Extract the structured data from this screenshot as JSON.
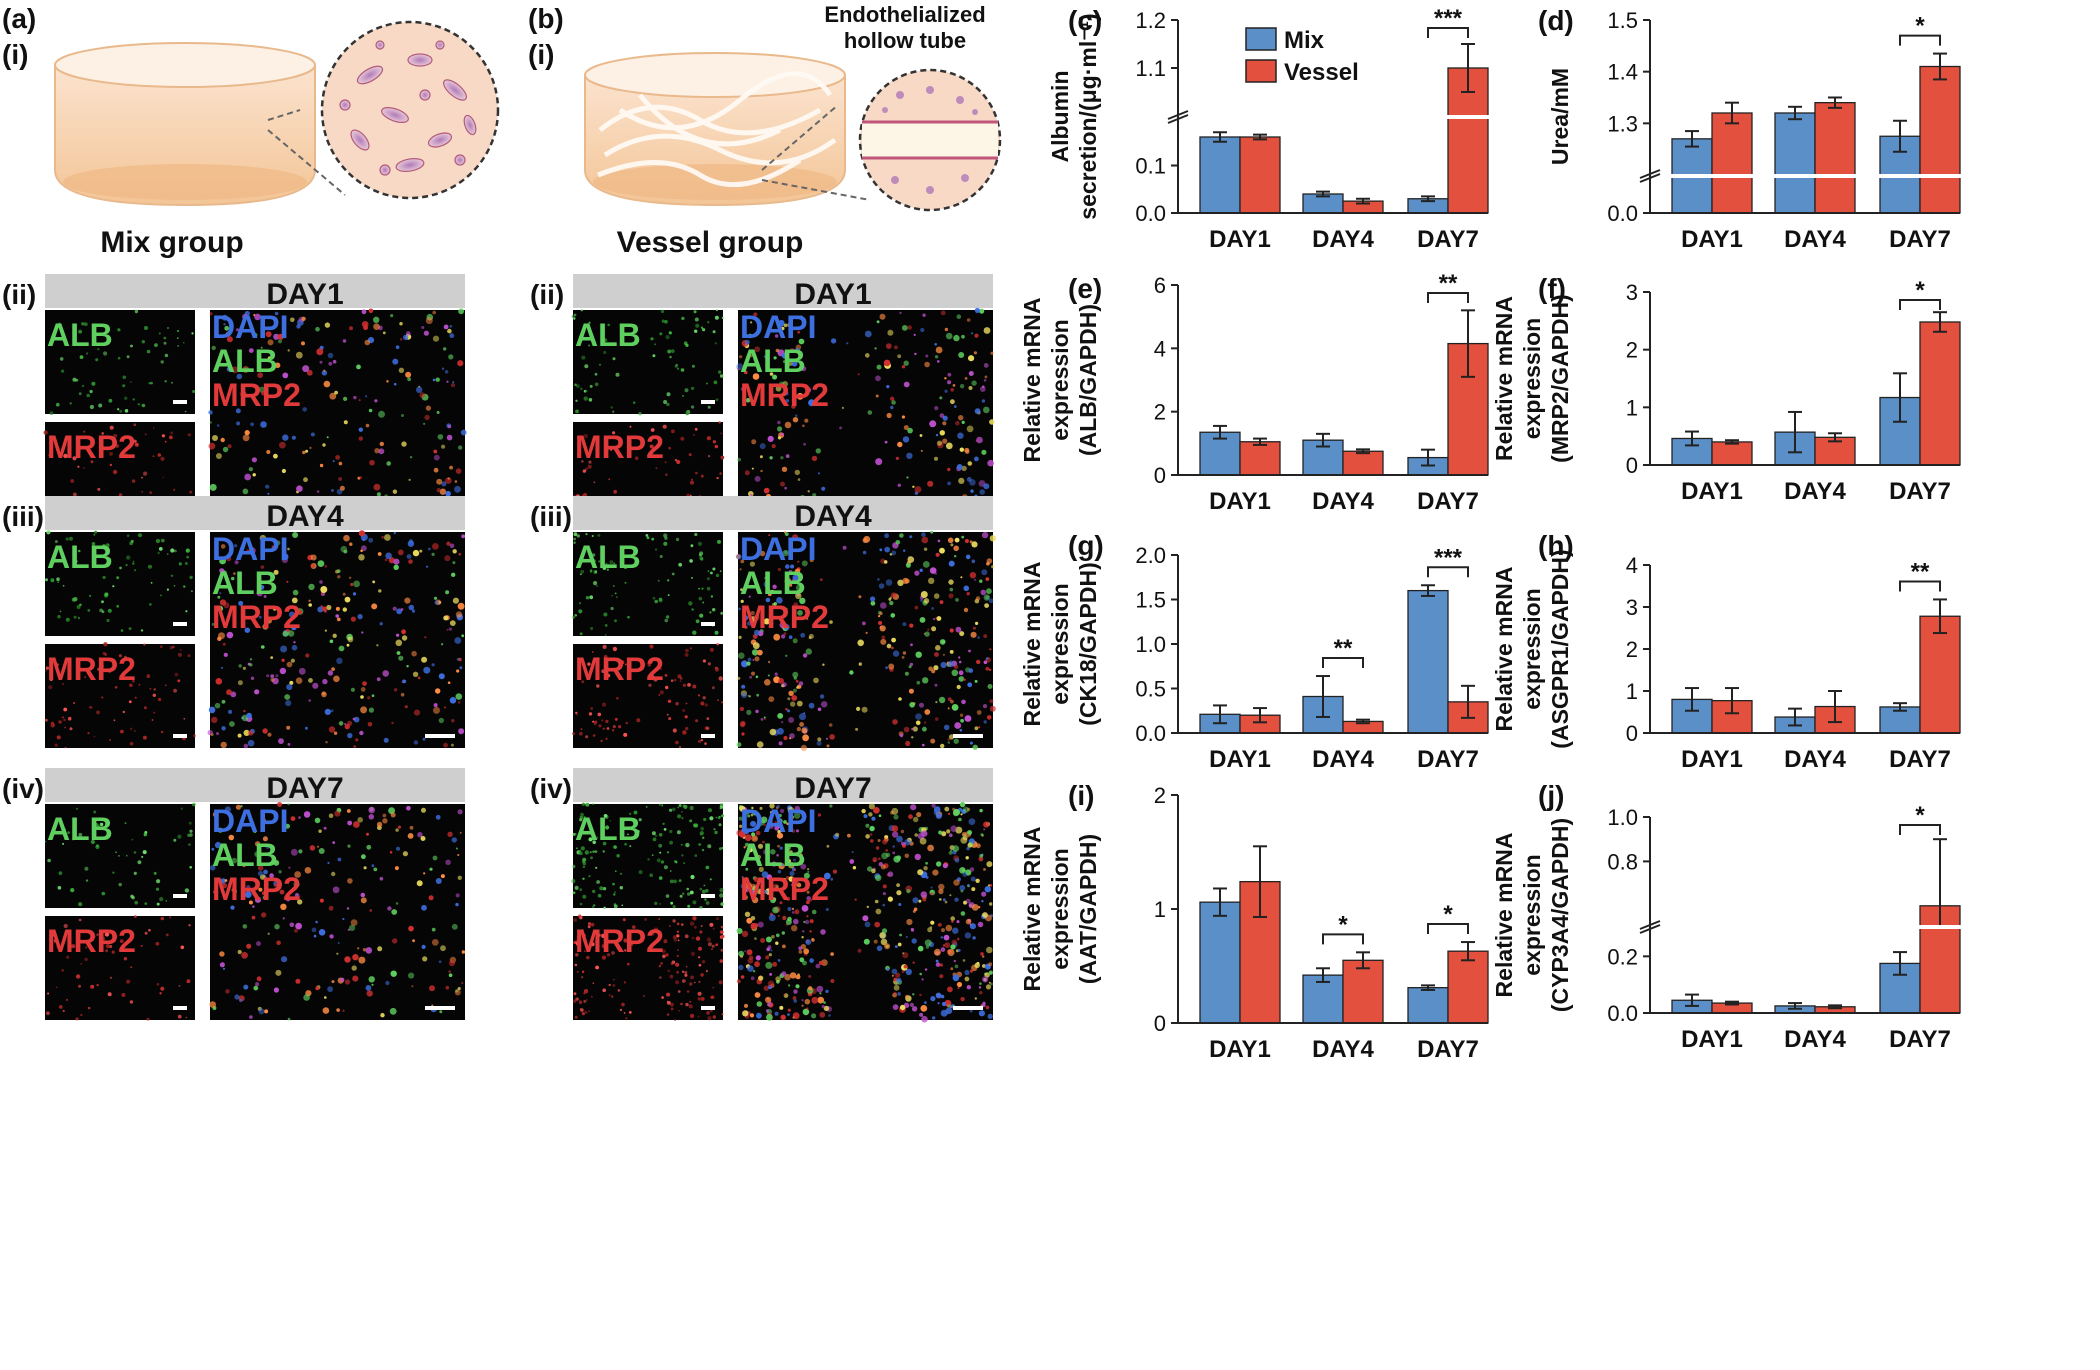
{
  "figure": {
    "colors": {
      "mix": "#5b8fc7",
      "vessel": "#e4503e",
      "green": "#5fd05f",
      "red": "#e23a3a",
      "blue": "#3d6fe0",
      "day_bar": "#cfcfcf"
    },
    "schematic": {
      "a": {
        "label": "(a)",
        "sub": "(i)",
        "group": "Mix group"
      },
      "b": {
        "label": "(b)",
        "sub": "(i)",
        "group": "Vessel group",
        "tube_line1": "Endothelialized",
        "tube_line2": "hollow tube"
      }
    },
    "micro_rows": [
      {
        "sub": "(ii)",
        "day": "DAY1"
      },
      {
        "sub": "(iii)",
        "day": "DAY4"
      },
      {
        "sub": "(iv)",
        "day": "DAY7"
      }
    ],
    "micro_labels": {
      "alb": "ALB",
      "mrp2": "MRP2",
      "dapi": "DAPI"
    },
    "legend": {
      "mix": "Mix",
      "vessel": "Vessel"
    },
    "categories": [
      "DAY1",
      "DAY4",
      "DAY7"
    ]
  },
  "chart_data": [
    {
      "panel": "(c)",
      "type": "bar",
      "ylabel_lines": [
        "Albumin",
        "secretion/(μg·ml⁻¹)"
      ],
      "axis_break": true,
      "yticks": [
        "0.0",
        "0.1",
        "1.1",
        "1.2"
      ],
      "categories": [
        "DAY1",
        "DAY4",
        "DAY7"
      ],
      "series": [
        {
          "name": "Mix",
          "values": [
            0.16,
            0.04,
            0.03
          ],
          "errors": [
            0.01,
            0.005,
            0.005
          ]
        },
        {
          "name": "Vessel",
          "values": [
            0.16,
            0.025,
            1.1
          ],
          "errors": [
            0.005,
            0.005,
            0.05
          ]
        }
      ],
      "significance": [
        {
          "category": "DAY7",
          "label": "***"
        }
      ]
    },
    {
      "panel": "(d)",
      "type": "bar",
      "ylabel_lines": [
        "Urea/mM"
      ],
      "axis_break": true,
      "yticks": [
        "0.0",
        "1.3",
        "1.4",
        "1.5"
      ],
      "categories": [
        "DAY1",
        "DAY4",
        "DAY7"
      ],
      "series": [
        {
          "name": "Mix",
          "values": [
            1.27,
            1.32,
            1.275
          ],
          "errors": [
            0.015,
            0.012,
            0.03
          ]
        },
        {
          "name": "Vessel",
          "values": [
            1.32,
            1.34,
            1.41
          ],
          "errors": [
            0.02,
            0.01,
            0.025
          ]
        }
      ],
      "significance": [
        {
          "category": "DAY7",
          "label": "*"
        }
      ]
    },
    {
      "panel": "(e)",
      "type": "bar",
      "ylabel_lines": [
        "Relative mRNA",
        "expression",
        "(ALB/GAPDH)"
      ],
      "ylim": [
        0,
        6
      ],
      "yticks": [
        "0",
        "2",
        "4",
        "6"
      ],
      "categories": [
        "DAY1",
        "DAY4",
        "DAY7"
      ],
      "series": [
        {
          "name": "Mix",
          "values": [
            1.35,
            1.1,
            0.55
          ],
          "errors": [
            0.2,
            0.2,
            0.25
          ]
        },
        {
          "name": "Vessel",
          "values": [
            1.05,
            0.75,
            4.15
          ],
          "errors": [
            0.1,
            0.06,
            1.05
          ]
        }
      ],
      "significance": [
        {
          "category": "DAY7",
          "label": "**"
        }
      ]
    },
    {
      "panel": "(f)",
      "type": "bar",
      "ylabel_lines": [
        "Relative mRNA",
        "expression",
        "(MRP2/GAPDH)"
      ],
      "ylim": [
        0,
        3
      ],
      "yticks": [
        "0",
        "1",
        "2",
        "3"
      ],
      "categories": [
        "DAY1",
        "DAY4",
        "DAY7"
      ],
      "series": [
        {
          "name": "Mix",
          "values": [
            0.46,
            0.57,
            1.17
          ],
          "errors": [
            0.12,
            0.35,
            0.42
          ]
        },
        {
          "name": "Vessel",
          "values": [
            0.4,
            0.48,
            2.48
          ],
          "errors": [
            0.03,
            0.07,
            0.17
          ]
        }
      ],
      "significance": [
        {
          "category": "DAY7",
          "label": "*"
        }
      ]
    },
    {
      "panel": "(g)",
      "type": "bar",
      "ylabel_lines": [
        "Relative mRNA",
        "expression",
        "(CK18/GAPDH)"
      ],
      "ylim": [
        0,
        2.0
      ],
      "yticks": [
        "0.0",
        "0.5",
        "1.0",
        "1.5",
        "2.0"
      ],
      "categories": [
        "DAY1",
        "DAY4",
        "DAY7"
      ],
      "series": [
        {
          "name": "Mix",
          "values": [
            0.21,
            0.41,
            1.6
          ],
          "errors": [
            0.1,
            0.23,
            0.06
          ]
        },
        {
          "name": "Vessel",
          "values": [
            0.2,
            0.13,
            0.35
          ],
          "errors": [
            0.08,
            0.02,
            0.18
          ]
        }
      ],
      "significance": [
        {
          "category": "DAY4",
          "label": "**"
        },
        {
          "category": "DAY7",
          "label": "***"
        }
      ]
    },
    {
      "panel": "(h)",
      "type": "bar",
      "ylabel_lines": [
        "Relative mRNA",
        "expression",
        "(ASGPR1/GAPDH)"
      ],
      "ylim": [
        0,
        4
      ],
      "yticks": [
        "0",
        "1",
        "2",
        "3",
        "4"
      ],
      "categories": [
        "DAY1",
        "DAY4",
        "DAY7"
      ],
      "series": [
        {
          "name": "Mix",
          "values": [
            0.8,
            0.38,
            0.62
          ],
          "errors": [
            0.27,
            0.2,
            0.09
          ]
        },
        {
          "name": "Vessel",
          "values": [
            0.77,
            0.63,
            2.78
          ],
          "errors": [
            0.3,
            0.37,
            0.4
          ]
        }
      ],
      "significance": [
        {
          "category": "DAY7",
          "label": "**"
        }
      ]
    },
    {
      "panel": "(i)",
      "type": "bar",
      "ylabel_lines": [
        "Relative mRNA",
        "expression",
        "(AAT/GAPDH)"
      ],
      "ylim": [
        0,
        2
      ],
      "yticks": [
        "0",
        "1",
        "2"
      ],
      "categories": [
        "DAY1",
        "DAY4",
        "DAY7"
      ],
      "series": [
        {
          "name": "Mix",
          "values": [
            1.06,
            0.42,
            0.31
          ],
          "errors": [
            0.12,
            0.06,
            0.02
          ]
        },
        {
          "name": "Vessel",
          "values": [
            1.24,
            0.55,
            0.63
          ],
          "errors": [
            0.31,
            0.07,
            0.08
          ]
        }
      ],
      "significance": [
        {
          "category": "DAY4",
          "label": "*"
        },
        {
          "category": "DAY7",
          "label": "*"
        }
      ]
    },
    {
      "panel": "(j)",
      "type": "bar",
      "ylabel_lines": [
        "Relative mRNA",
        "expression",
        "(CYP3A4/GAPDH)"
      ],
      "axis_break": true,
      "yticks": [
        "0.0",
        "0.2",
        "0.8",
        "1.0"
      ],
      "categories": [
        "DAY1",
        "DAY4",
        "DAY7"
      ],
      "series": [
        {
          "name": "Mix",
          "values": [
            0.045,
            0.025,
            0.175
          ],
          "errors": [
            0.02,
            0.01,
            0.04
          ]
        },
        {
          "name": "Vessel",
          "values": [
            0.035,
            0.022,
            0.6
          ],
          "errors": [
            0.005,
            0.005,
            0.3
          ]
        }
      ],
      "significance": [
        {
          "category": "DAY7",
          "label": "*"
        }
      ]
    }
  ]
}
